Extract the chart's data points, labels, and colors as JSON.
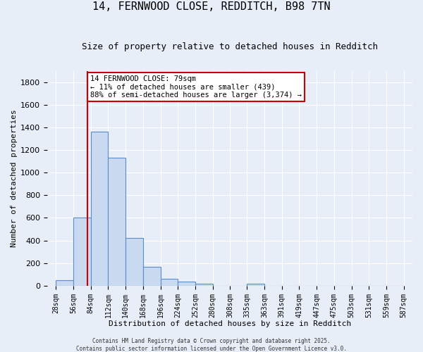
{
  "title_line1": "14, FERNWOOD CLOSE, REDDITCH, B98 7TN",
  "title_line2": "Size of property relative to detached houses in Redditch",
  "xlabel": "Distribution of detached houses by size in Redditch",
  "ylabel": "Number of detached properties",
  "bar_edges": [
    28,
    56,
    84,
    112,
    140,
    168,
    196,
    224,
    252,
    280,
    308,
    335,
    363,
    391,
    419,
    447,
    475,
    503,
    531,
    559,
    587
  ],
  "bar_heights": [
    50,
    600,
    1360,
    1130,
    425,
    170,
    60,
    35,
    15,
    2,
    2,
    20,
    2,
    2,
    2,
    2,
    2,
    2,
    2,
    2
  ],
  "bar_color": "#c9d9ef",
  "bar_edge_color": "#5a8fcb",
  "vline_x": 79,
  "vline_color": "#cc0000",
  "annotation_text": "14 FERNWOOD CLOSE: 79sqm\n← 11% of detached houses are smaller (439)\n88% of semi-detached houses are larger (3,374) →",
  "annotation_box_color": "#ffffff",
  "annotation_box_edge": "#cc0000",
  "ylim": [
    0,
    1900
  ],
  "yticks": [
    0,
    200,
    400,
    600,
    800,
    1000,
    1200,
    1400,
    1600,
    1800
  ],
  "background_color": "#e8eef8",
  "grid_color": "#ffffff",
  "footer_text": "Contains HM Land Registry data © Crown copyright and database right 2025.\nContains public sector information licensed under the Open Government Licence v3.0.",
  "tick_labels": [
    "28sqm",
    "56sqm",
    "84sqm",
    "112sqm",
    "140sqm",
    "168sqm",
    "196sqm",
    "224sqm",
    "252sqm",
    "280sqm",
    "308sqm",
    "335sqm",
    "363sqm",
    "391sqm",
    "419sqm",
    "447sqm",
    "475sqm",
    "503sqm",
    "531sqm",
    "559sqm",
    "587sqm"
  ],
  "title_fontsize": 11,
  "subtitle_fontsize": 9,
  "xlabel_fontsize": 8,
  "ylabel_fontsize": 8,
  "tick_fontsize": 7,
  "ytick_fontsize": 8,
  "annot_fontsize": 7.5
}
